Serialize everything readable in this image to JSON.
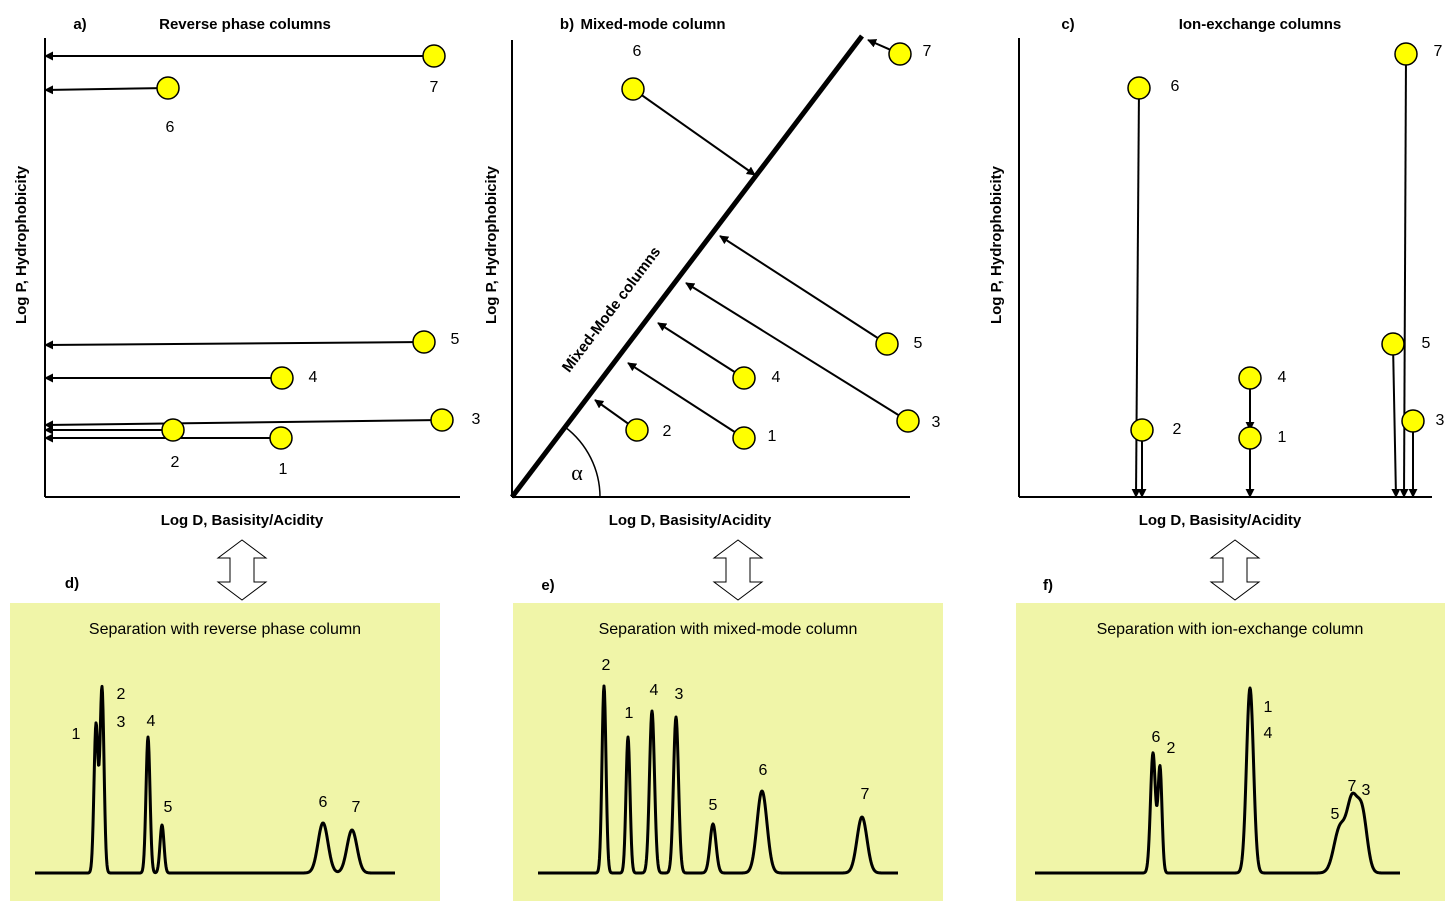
{
  "panels": [
    {
      "letter": "a)",
      "title": "Reverse phase columns",
      "y_label": "Log P, Hydrophobicity",
      "x_label": "Log D, Basisity/Acidity",
      "points": [
        "1",
        "2",
        "3",
        "4",
        "5",
        "6",
        "7"
      ]
    },
    {
      "letter": "b)",
      "title": "Mixed-mode column",
      "y_label": "Log P, Hydrophobicity",
      "x_label": "Log D, Basisity/Acidity",
      "line_label": "Mixed-Mode columns",
      "angle_label": "α",
      "points": [
        "1",
        "2",
        "3",
        "4",
        "5",
        "6",
        "7"
      ]
    },
    {
      "letter": "c)",
      "title": "Ion-exchange columns",
      "y_label": "Log P, Hydrophobicity",
      "x_label": "Log D, Basisity/Acidity",
      "points": [
        "1",
        "2",
        "3",
        "4",
        "5",
        "6",
        "7"
      ]
    }
  ],
  "separations": [
    {
      "letter": "d)",
      "title": "Separation with reverse phase column",
      "peak_labels": [
        "1",
        "2",
        "3",
        "4",
        "5",
        "6",
        "7"
      ]
    },
    {
      "letter": "e)",
      "title": "Separation with mixed-mode column",
      "peak_labels": [
        "2",
        "1",
        "4",
        "3",
        "5",
        "6",
        "7"
      ]
    },
    {
      "letter": "f)",
      "title": "Separation with ion-exchange column",
      "peak_labels": [
        "6",
        "2",
        "1",
        "4",
        "7",
        "3",
        "5"
      ]
    }
  ]
}
